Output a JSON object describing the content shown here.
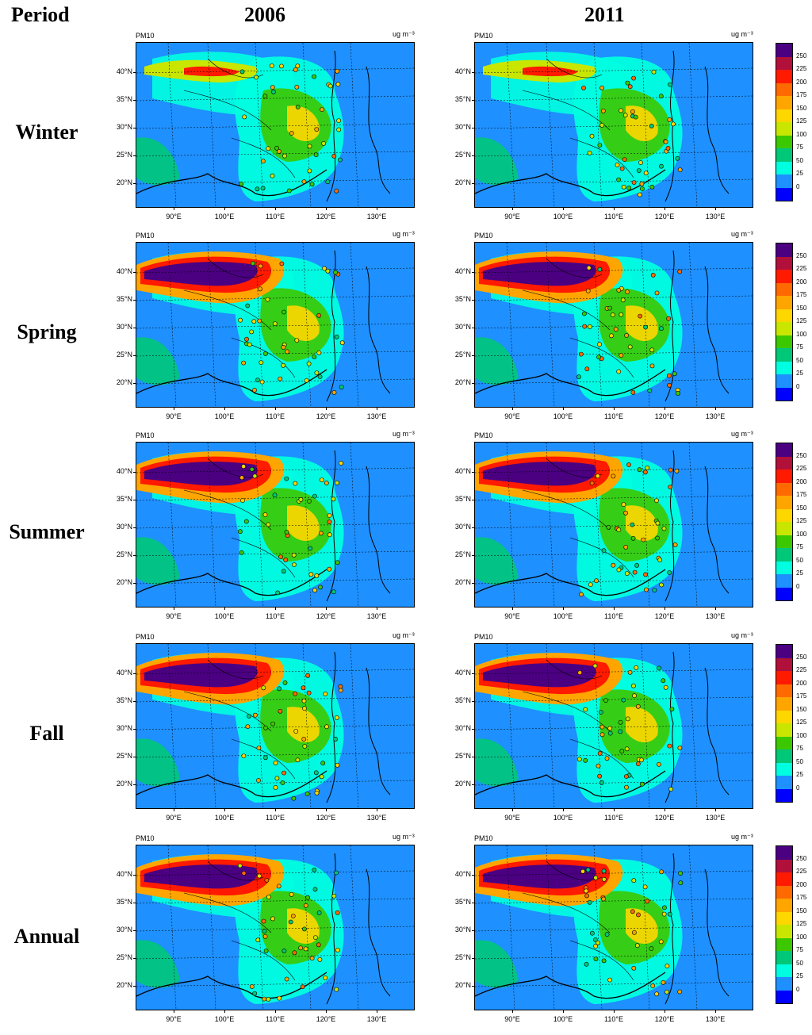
{
  "header": {
    "period": "Period",
    "col1": "2006",
    "col2": "2011"
  },
  "rows": [
    {
      "label": "Winter",
      "top": 0
    },
    {
      "label": "Spring",
      "top": 0
    },
    {
      "label": "Summer",
      "top": 0
    },
    {
      "label": "Fall",
      "top": 0
    },
    {
      "label": "Annual",
      "top": 0
    }
  ],
  "panel": {
    "title": "PM10",
    "unit": "ug m⁻³"
  },
  "lat_labels": [
    "40°N",
    "35°N",
    "30°N",
    "25°N",
    "20°N"
  ],
  "lon_labels": [
    "90°E",
    "100°E",
    "110°E",
    "120°E",
    "130°E"
  ],
  "colorbar": {
    "labels": [
      "250",
      "225",
      "200",
      "175",
      "150",
      "125",
      "100",
      "75",
      "50",
      "25",
      "0"
    ],
    "colors": [
      "#4b0082",
      "#b0103a",
      "#ff1a00",
      "#ff6a00",
      "#ffa500",
      "#ffd700",
      "#c8e600",
      "#3cc800",
      "#00c878",
      "#00ffe0",
      "#1e90ff",
      "#0000ff"
    ]
  },
  "land_color": "#1e90ff"
}
